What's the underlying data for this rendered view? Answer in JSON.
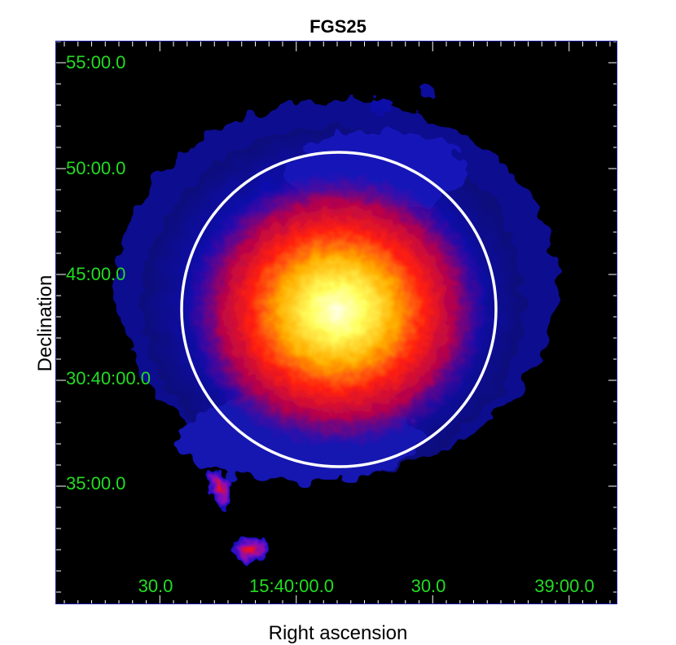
{
  "figure": {
    "title": "FGS25",
    "xlabel": "Right ascension",
    "ylabel": "Declination",
    "dec_ticks": [
      "55:00.0",
      "50:00.0",
      "45:00.0",
      "30:40:00.0",
      "35:00.0"
    ],
    "ra_ticks": [
      "30.0",
      "15:40:00.0",
      "30.0",
      "39:00.0"
    ],
    "colors": {
      "background": "#000000",
      "tick_label": "#22dd22",
      "aperture": "#ffffff",
      "frame": "#1a1aa0"
    },
    "colormap": "black-blue-red-yellow-white",
    "overlay": "white-circle-aperture"
  }
}
